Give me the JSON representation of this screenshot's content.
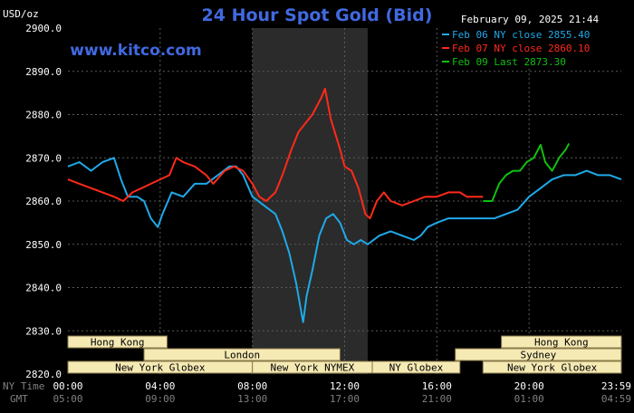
{
  "chart_data": {
    "type": "line",
    "title": "24 Hour Spot Gold (Bid)",
    "site": "www.kitco.com",
    "unit": "USD/oz",
    "date_stamp": "February 09, 2025 21:44",
    "ylim": [
      2820,
      2900
    ],
    "yticks": [
      "2900.0",
      "2890.0",
      "2880.0",
      "2870.0",
      "2860.0",
      "2850.0",
      "2840.0",
      "2830.0",
      "2820.0"
    ],
    "x_ticks_ny": [
      "00:00",
      "04:00",
      "08:00",
      "12:00",
      "16:00",
      "20:00",
      "23:59"
    ],
    "x_ticks_gmt": [
      "05:00",
      "09:00",
      "13:00",
      "17:00",
      "21:00",
      "01:00",
      "04:59"
    ],
    "axis_row_labels": [
      "NY Time",
      "GMT"
    ],
    "xlim_hours": [
      0,
      24
    ],
    "grid": true,
    "legend_position": "top-right",
    "highlight_window_hours": [
      8,
      13
    ],
    "series": [
      {
        "name": "Feb 06 NY close 2855.40",
        "color": "#1fa9e8",
        "points": [
          [
            0,
            2868
          ],
          [
            0.5,
            2869
          ],
          [
            1,
            2867
          ],
          [
            1.5,
            2869
          ],
          [
            2,
            2870
          ],
          [
            2.3,
            2865
          ],
          [
            2.6,
            2861
          ],
          [
            3,
            2861
          ],
          [
            3.3,
            2860
          ],
          [
            3.6,
            2856
          ],
          [
            3.9,
            2854
          ],
          [
            4.1,
            2857
          ],
          [
            4.5,
            2862
          ],
          [
            5,
            2861
          ],
          [
            5.5,
            2864
          ],
          [
            6,
            2864
          ],
          [
            6.5,
            2866
          ],
          [
            7,
            2868
          ],
          [
            7.3,
            2868
          ],
          [
            7.6,
            2866
          ],
          [
            8,
            2861
          ],
          [
            8.5,
            2859
          ],
          [
            9,
            2857
          ],
          [
            9.3,
            2853
          ],
          [
            9.6,
            2848
          ],
          [
            9.9,
            2841
          ],
          [
            10.1,
            2835
          ],
          [
            10.2,
            2832
          ],
          [
            10.35,
            2838
          ],
          [
            10.6,
            2844
          ],
          [
            10.9,
            2852
          ],
          [
            11.2,
            2856
          ],
          [
            11.5,
            2857
          ],
          [
            11.8,
            2855
          ],
          [
            12.1,
            2851
          ],
          [
            12.4,
            2850
          ],
          [
            12.7,
            2851
          ],
          [
            13,
            2850
          ],
          [
            13.5,
            2852
          ],
          [
            14,
            2853
          ],
          [
            14.5,
            2852
          ],
          [
            15,
            2851
          ],
          [
            15.3,
            2852
          ],
          [
            15.6,
            2854
          ],
          [
            16,
            2855
          ],
          [
            16.5,
            2856
          ],
          [
            17,
            2856
          ],
          [
            17.5,
            2856
          ],
          [
            18,
            2856
          ],
          [
            18.5,
            2856
          ],
          [
            19,
            2857
          ],
          [
            19.5,
            2858
          ],
          [
            20,
            2861
          ],
          [
            20.5,
            2863
          ],
          [
            21,
            2865
          ],
          [
            21.5,
            2866
          ],
          [
            22,
            2866
          ],
          [
            22.5,
            2867
          ],
          [
            23,
            2866
          ],
          [
            23.5,
            2866
          ],
          [
            24,
            2865
          ]
        ]
      },
      {
        "name": "Feb 07 NY close 2860.10",
        "color": "#ff2a1a",
        "points": [
          [
            0,
            2865
          ],
          [
            0.5,
            2864
          ],
          [
            1,
            2863
          ],
          [
            1.5,
            2862
          ],
          [
            2,
            2861
          ],
          [
            2.4,
            2860
          ],
          [
            2.8,
            2862
          ],
          [
            3.2,
            2863
          ],
          [
            3.6,
            2864
          ],
          [
            4,
            2865
          ],
          [
            4.4,
            2866
          ],
          [
            4.7,
            2870
          ],
          [
            5,
            2869
          ],
          [
            5.5,
            2868
          ],
          [
            6,
            2866
          ],
          [
            6.3,
            2864
          ],
          [
            6.8,
            2867
          ],
          [
            7.2,
            2868
          ],
          [
            7.6,
            2867
          ],
          [
            8,
            2864
          ],
          [
            8.3,
            2861
          ],
          [
            8.6,
            2860
          ],
          [
            9,
            2862
          ],
          [
            9.3,
            2866
          ],
          [
            9.7,
            2872
          ],
          [
            10,
            2876
          ],
          [
            10.3,
            2878
          ],
          [
            10.6,
            2880
          ],
          [
            11,
            2884
          ],
          [
            11.15,
            2886
          ],
          [
            11.4,
            2879
          ],
          [
            11.8,
            2872
          ],
          [
            12,
            2868
          ],
          [
            12.3,
            2867
          ],
          [
            12.6,
            2863
          ],
          [
            12.9,
            2857
          ],
          [
            13.1,
            2856
          ],
          [
            13.4,
            2860
          ],
          [
            13.7,
            2862
          ],
          [
            14,
            2860
          ],
          [
            14.5,
            2859
          ],
          [
            15,
            2860
          ],
          [
            15.5,
            2861
          ],
          [
            16,
            2861
          ],
          [
            16.5,
            2862
          ],
          [
            17,
            2862
          ],
          [
            17.3,
            2861
          ],
          [
            17.6,
            2861
          ],
          [
            18,
            2861
          ]
        ]
      },
      {
        "name": "Feb 09 Last 2873.30",
        "color": "#10c010",
        "points": [
          [
            18,
            2860
          ],
          [
            18.4,
            2860
          ],
          [
            18.7,
            2864
          ],
          [
            19,
            2866
          ],
          [
            19.3,
            2867
          ],
          [
            19.6,
            2867
          ],
          [
            19.9,
            2869
          ],
          [
            20.2,
            2870
          ],
          [
            20.5,
            2873
          ],
          [
            20.7,
            2869
          ],
          [
            21,
            2867
          ],
          [
            21.3,
            2870
          ],
          [
            21.6,
            2872
          ],
          [
            21.73,
            2873.3
          ]
        ]
      }
    ]
  },
  "markets": [
    {
      "label": "Hong Kong",
      "row": 0,
      "start": 0,
      "end": 4.3
    },
    {
      "label": "Hong Kong",
      "row": 0,
      "start": 18.8,
      "end": 24
    },
    {
      "label": "London",
      "row": 1,
      "start": 3.3,
      "end": 11.8
    },
    {
      "label": "Sydney",
      "row": 1,
      "start": 16.8,
      "end": 24
    },
    {
      "label": "New York Globex",
      "row": 2,
      "start": 0,
      "end": 8.0
    },
    {
      "label": "New York NYMEX",
      "row": 2,
      "start": 8.0,
      "end": 13.2
    },
    {
      "label": "NY Globex",
      "row": 2,
      "start": 13.2,
      "end": 17.0
    },
    {
      "label": "New York Globex",
      "row": 2,
      "start": 18.0,
      "end": 24
    }
  ]
}
